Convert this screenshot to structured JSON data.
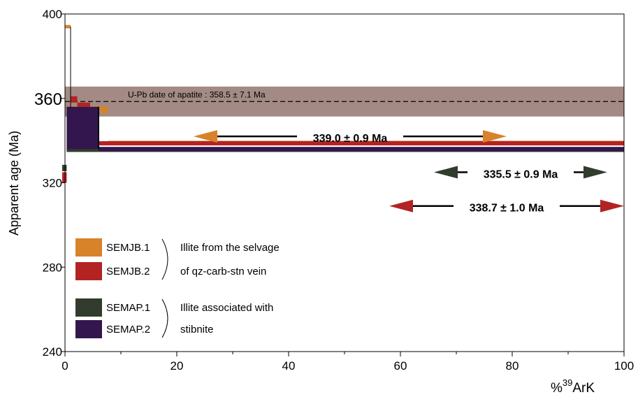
{
  "chart_data": {
    "type": "step",
    "title": "",
    "xlabel": "%39Ark",
    "xlabel_parts": {
      "prefix": "%",
      "sup": "39",
      "base": "Ar",
      "sub": "K"
    },
    "ylabel": "Apparent age (Ma)",
    "xlim": [
      0,
      100
    ],
    "ylim": [
      240,
      400
    ],
    "x_ticks": [
      "0",
      "20",
      "40",
      "60",
      "80",
      "100"
    ],
    "x_tick_values": [
      0,
      20,
      40,
      60,
      80,
      100
    ],
    "x_minor_ticks": [
      10,
      30,
      50,
      70,
      90
    ],
    "y_ticks": [
      "240",
      "280",
      "320",
      "360",
      "400"
    ],
    "y_tick_values": [
      240,
      280,
      320,
      360,
      400
    ],
    "grid": false,
    "reference_band": {
      "label": "U-Pb date of apatite : 358.5 ± 7.1 Ma",
      "value": 358.5,
      "lower": 351.4,
      "upper": 365.6,
      "color": "#a48a84"
    },
    "plateaus": [
      {
        "label": "339.0 ± 0.9 Ma",
        "value": 339.0,
        "x_start": 23,
        "x_end": 79,
        "color": "#d8822a",
        "arrow_y": 342
      },
      {
        "label": "335.5 ± 0.9 Ma",
        "value": 335.5,
        "x_start": 66,
        "x_end": 97,
        "color": "#323c2e",
        "arrow_y": 325
      },
      {
        "label": "338.7 ± 1.0 Ma",
        "value": 338.7,
        "x_start": 58,
        "x_end": 100,
        "color": "#b32323",
        "arrow_y": 309
      }
    ],
    "series": [
      {
        "name": "SEMJB.1",
        "color": "#d8822a",
        "steps": [
          {
            "x0": 0.0,
            "x1": 1.0,
            "age": 394.0,
            "err": 0.8
          },
          {
            "x0": 1.0,
            "x1": 6.5,
            "age": 355.5,
            "err": 0.8
          },
          {
            "x0": 6.5,
            "x1": 7.7,
            "age": 354.5,
            "err": 1.5
          },
          {
            "x0": 7.7,
            "x1": 100,
            "age": 339.0,
            "err": 0.9
          }
        ]
      },
      {
        "name": "SEMJB.2",
        "color": "#b32323",
        "steps": [
          {
            "x0": -0.5,
            "x1": 0.3,
            "age": 322.5,
            "err": 2.5
          },
          {
            "x0": 1.0,
            "x1": 2.2,
            "age": 359.5,
            "err": 1.5
          },
          {
            "x0": 2.2,
            "x1": 4.5,
            "age": 357.0,
            "err": 1.0
          },
          {
            "x0": 4.5,
            "x1": 100,
            "age": 338.7,
            "err": 1.0
          }
        ]
      },
      {
        "name": "SEMAP.1",
        "color": "#323c2e",
        "steps": [
          {
            "x0": -0.5,
            "x1": 0.3,
            "age": 327.0,
            "err": 1.5
          },
          {
            "x0": 0.3,
            "x1": 100,
            "age": 335.5,
            "err": 0.9
          }
        ]
      },
      {
        "name": "SEMAP.2",
        "color": "#33164d",
        "steps": [
          {
            "x0": 0.3,
            "x1": 6.0,
            "age": 346.0,
            "err": 10.0
          },
          {
            "x0": 6.0,
            "x1": 100,
            "age": 336.0,
            "err": 1.0
          }
        ]
      }
    ],
    "legend": {
      "placement": "bottom-left",
      "entries": [
        {
          "name": "SEMJB.1",
          "color": "#d8822a"
        },
        {
          "name": "SEMJB.2",
          "color": "#b32323"
        },
        {
          "name": "SEMAP.1",
          "color": "#323c2e"
        },
        {
          "name": "SEMAP.2",
          "color": "#33164d"
        }
      ],
      "groups": [
        {
          "lines": [
            "Illite from the selvage",
            "of qz-carb-stn vein"
          ]
        },
        {
          "lines": [
            "Illite associated with",
            "stibnite"
          ]
        }
      ]
    }
  }
}
